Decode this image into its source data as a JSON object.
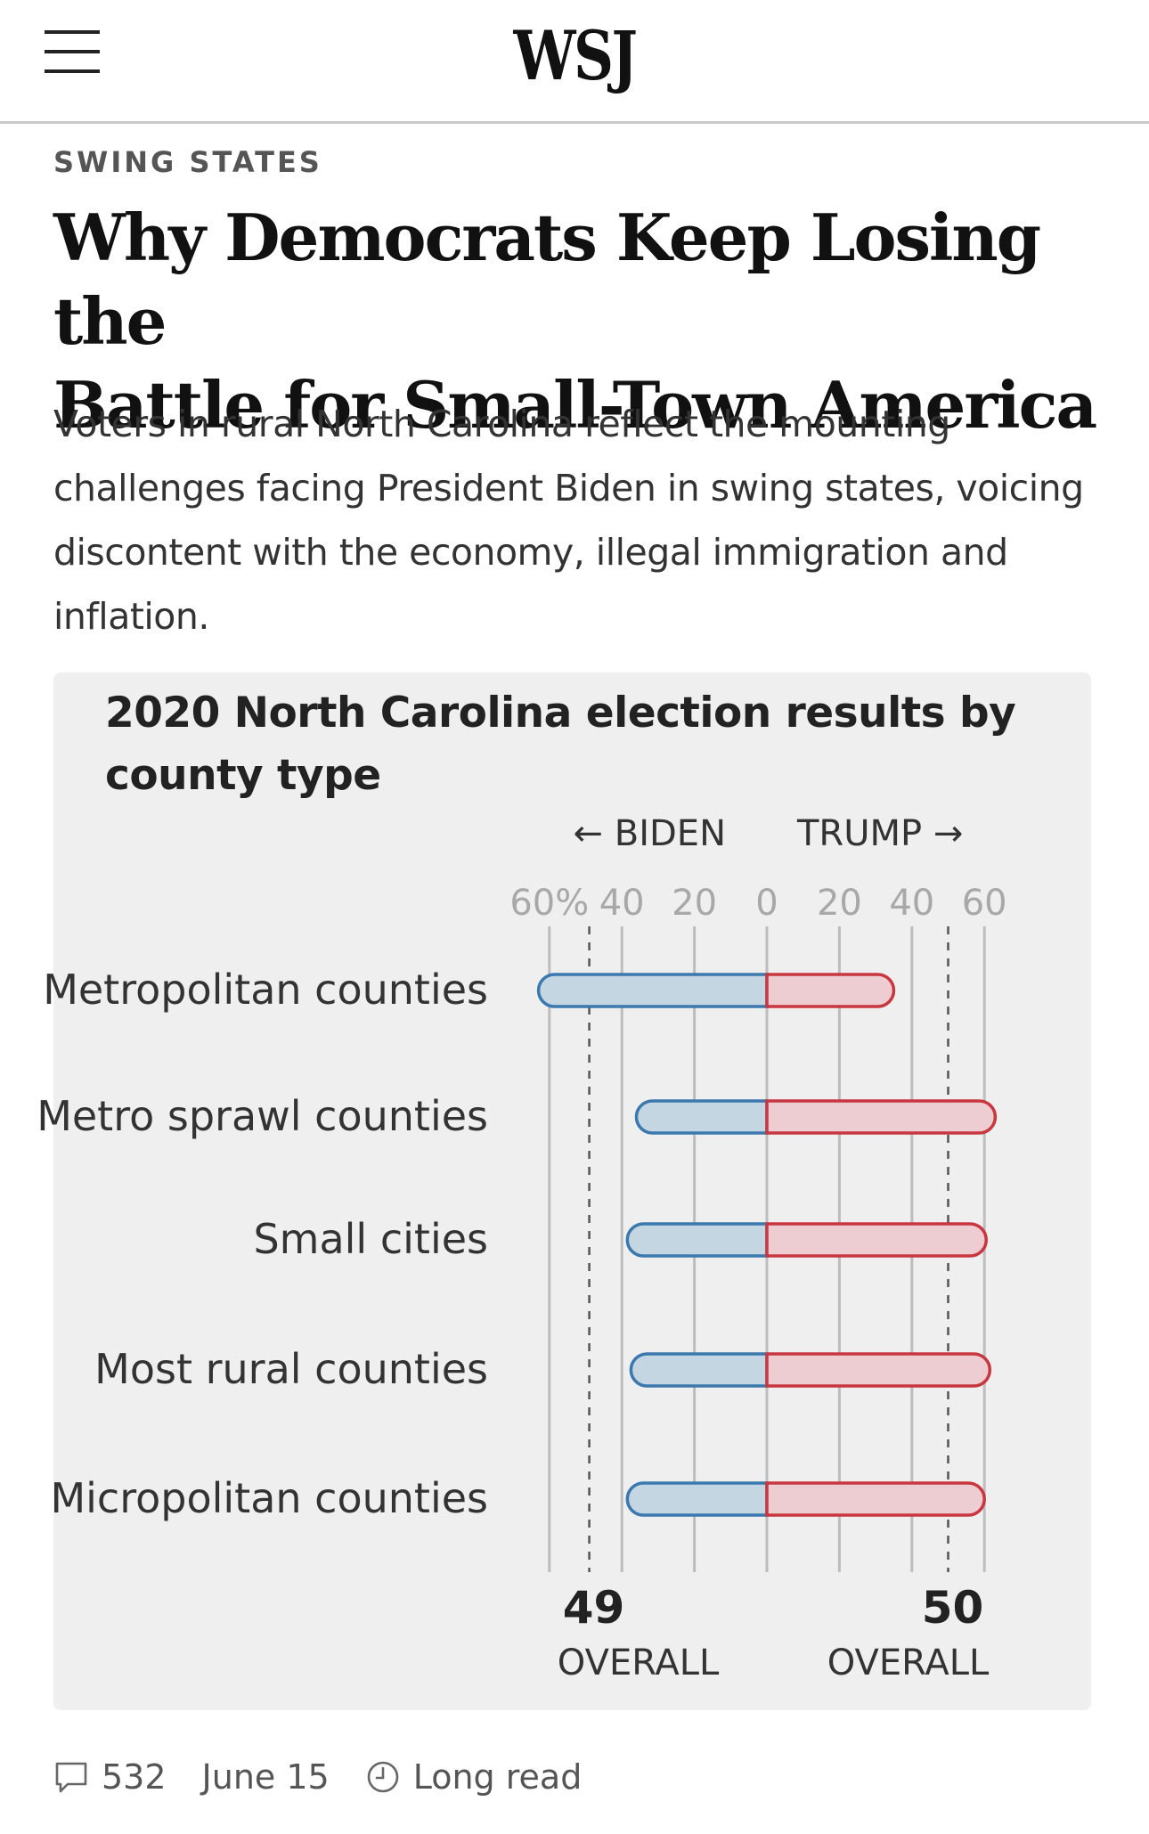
{
  "header": {
    "logo": "WSJ",
    "menu_icon": "hamburger-menu-icon"
  },
  "article": {
    "section": "SWING STATES",
    "headline_line1": "Why Democrats Keep Losing the",
    "headline_line2": "Battle for Small-Town America",
    "dek": "Voters in rural North Carolina reflect the mounting challenges facing President Biden in swing states, voicing discontent with the economy, illegal immigration and inflation."
  },
  "chart_data": {
    "type": "bar",
    "title": "2020 North Carolina election results by county type",
    "direction_left": "← BIDEN",
    "direction_right": "TRUMP →",
    "categories": [
      "Metropolitan counties",
      "Metro sprawl counties",
      "Small cities",
      "Most rural counties",
      "Micropolitan counties"
    ],
    "series": [
      {
        "name": "BIDEN",
        "values": [
          63,
          36,
          38.5,
          37.5,
          38.5
        ]
      },
      {
        "name": "TRUMP",
        "values": [
          35,
          63,
          60.5,
          61.5,
          60
        ]
      }
    ],
    "tick_labels_left": [
      "60%",
      "40",
      "20",
      "0"
    ],
    "tick_labels_right": [
      "20",
      "40",
      "60"
    ],
    "ticks": [
      60,
      40,
      20,
      0,
      20,
      40,
      60
    ],
    "xlim": [
      -65,
      65
    ],
    "overall": [
      {
        "value": 49,
        "label": "OVERALL",
        "side": "left"
      },
      {
        "value": 50,
        "label": "OVERALL",
        "side": "right"
      }
    ],
    "colors": {
      "biden_fill": "#c5d6e3",
      "biden_stroke": "#3b78ad",
      "trump_fill": "#edcdd1",
      "trump_stroke": "#c8373f",
      "grid": "#bdbdbd",
      "tick_text": "#a8a8a8",
      "label_text": "#333333"
    }
  },
  "meta": {
    "comments": "532",
    "date": "June 15",
    "read_type": "Long read",
    "comment_icon": "comment-icon",
    "clock_icon": "clock-icon"
  }
}
